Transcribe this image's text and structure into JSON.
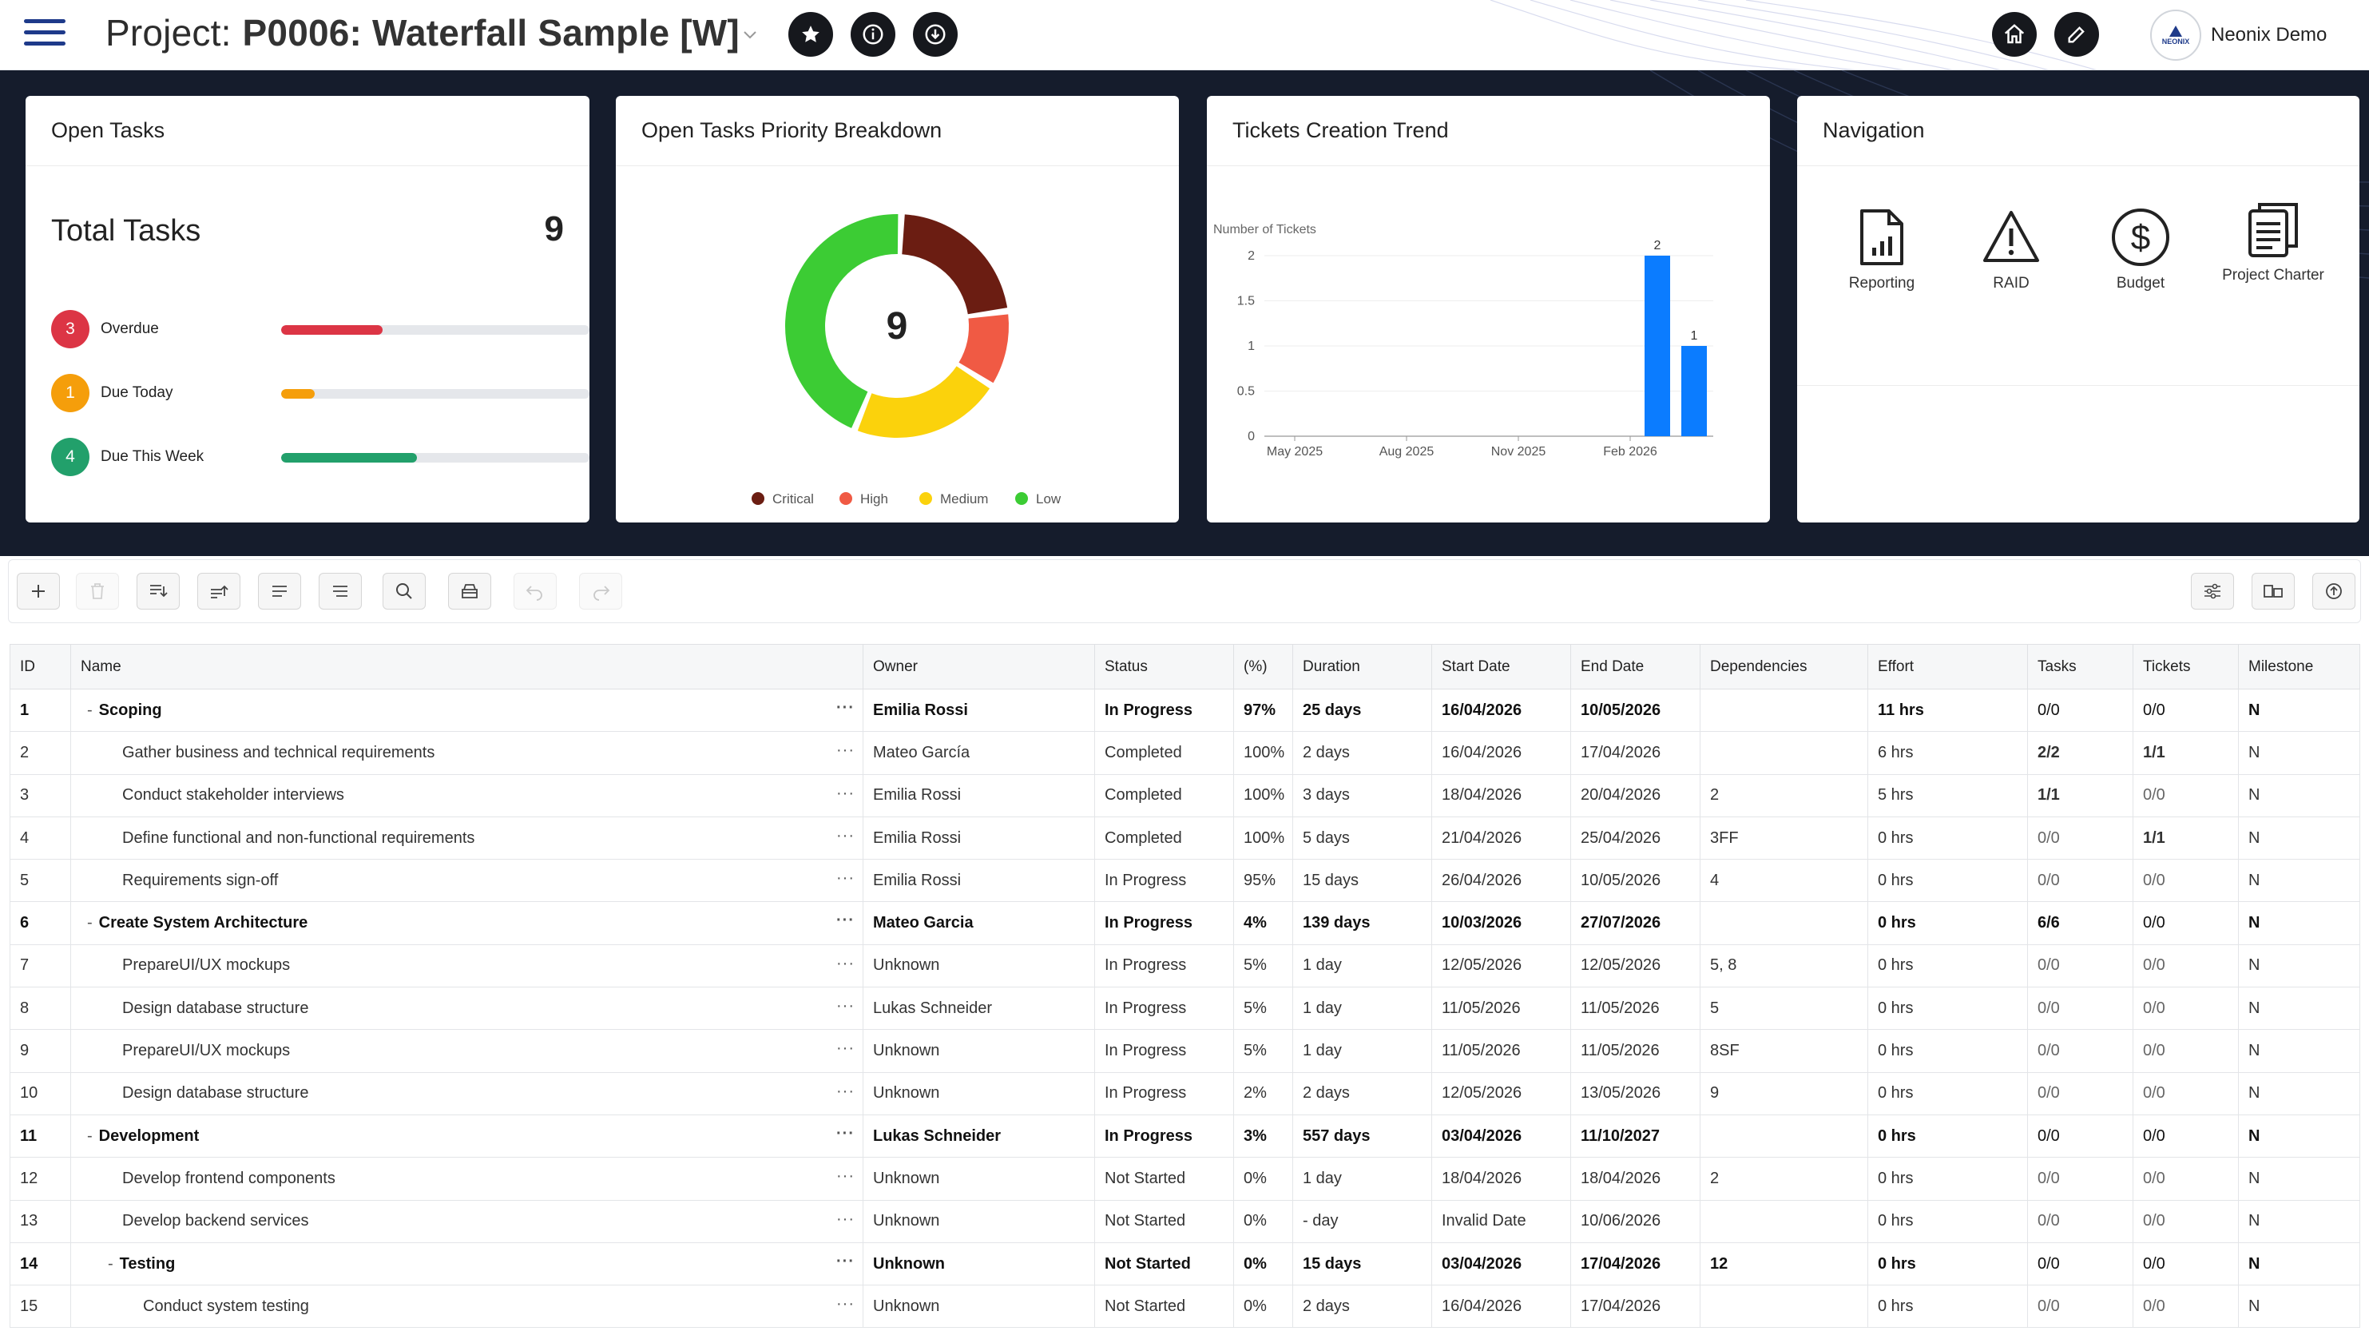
{
  "header": {
    "project_label": "Project:",
    "project_name": "P0006: Waterfall Sample [W]",
    "user_name": "Neonix Demo",
    "avatar_text": "NEONIX"
  },
  "cards": {
    "open_tasks": {
      "title": "Open Tasks",
      "total_label": "Total Tasks",
      "total": "9",
      "rows": [
        {
          "count": "3",
          "label": "Overdue",
          "color": "#dc3545",
          "fill": 0.33
        },
        {
          "count": "1",
          "label": "Due Today",
          "color": "#f59e0b",
          "fill": 0.11
        },
        {
          "count": "4",
          "label": "Due This Week",
          "color": "#22a06b",
          "fill": 0.44
        }
      ]
    },
    "priority": {
      "title": "Open Tasks Priority Breakdown",
      "center": "9",
      "legend": [
        "Critical",
        "High",
        "Medium",
        "Low"
      ]
    },
    "trend": {
      "title": "Tickets Creation Trend"
    },
    "navigation": {
      "title": "Navigation",
      "items": [
        "Reporting",
        "RAID",
        "Budget",
        "Project Charter"
      ]
    }
  },
  "chart_data": [
    {
      "type": "pie",
      "title": "Open Tasks Priority Breakdown",
      "categories": [
        "Critical",
        "High",
        "Medium",
        "Low"
      ],
      "values": [
        2,
        1,
        2,
        4
      ],
      "colors": [
        "#6b1d12",
        "#f05a44",
        "#fbd20c",
        "#3ccc34"
      ]
    },
    {
      "type": "bar",
      "title": "Tickets Creation Trend",
      "ylabel": "Number of Tickets",
      "ylim": [
        0,
        2
      ],
      "yticks": [
        "0",
        "0.5",
        "1",
        "1.5",
        "2"
      ],
      "xticks": [
        "May 2025",
        "Aug 2025",
        "Nov 2025",
        "Feb 2026"
      ],
      "categories": [
        "Mar 2026",
        "Apr 2026"
      ],
      "values": [
        2,
        1
      ],
      "color": "#0b7cff"
    }
  ],
  "table": {
    "headers": [
      "ID",
      "Name",
      "Owner",
      "Status",
      "(%)",
      "Duration",
      "Start Date",
      "End Date",
      "Dependencies",
      "Effort",
      "Tasks",
      "Tickets",
      "Milestone"
    ],
    "rows": [
      {
        "id": "1",
        "name": "Scoping",
        "owner": "Emilia Rossi",
        "status": "In Progress",
        "pct": "97%",
        "dur": "25 days",
        "start": "16/04/2026",
        "end": "10/05/2026",
        "deps": "",
        "effort": "11 hrs",
        "tasks": "0/0",
        "tickets": "0/0",
        "ms": "N",
        "bold": true,
        "level": 0
      },
      {
        "id": "2",
        "name": "Gather business and technical requirements",
        "owner": "Mateo García",
        "status": "Completed",
        "pct": "100%",
        "dur": "2 days",
        "start": "16/04/2026",
        "end": "17/04/2026",
        "deps": "",
        "effort": "6 hrs",
        "tasks": "2/2",
        "tickets": "1/1",
        "ms": "N",
        "bold": false,
        "level": 1
      },
      {
        "id": "3",
        "name": "Conduct stakeholder interviews",
        "owner": "Emilia Rossi",
        "status": "Completed",
        "pct": "100%",
        "dur": "3 days",
        "start": "18/04/2026",
        "end": "20/04/2026",
        "deps": "2",
        "effort": "5 hrs",
        "tasks": "1/1",
        "tickets": "0/0",
        "ms": "N",
        "bold": false,
        "level": 1
      },
      {
        "id": "4",
        "name": "Define functional and non-functional requirements",
        "owner": "Emilia Rossi",
        "status": "Completed",
        "pct": "100%",
        "dur": "5 days",
        "start": "21/04/2026",
        "end": "25/04/2026",
        "deps": "3FF",
        "effort": "0 hrs",
        "tasks": "0/0",
        "tickets": "1/1",
        "ms": "N",
        "bold": false,
        "level": 1
      },
      {
        "id": "5",
        "name": "Requirements sign-off",
        "owner": "Emilia Rossi",
        "status": "In Progress",
        "pct": "95%",
        "dur": "15 days",
        "start": "26/04/2026",
        "end": "10/05/2026",
        "deps": "4",
        "effort": "0 hrs",
        "tasks": "0/0",
        "tickets": "0/0",
        "ms": "N",
        "bold": false,
        "level": 1
      },
      {
        "id": "6",
        "name": "Create System Architecture",
        "owner": "Mateo Garcia",
        "status": "In Progress",
        "pct": "4%",
        "dur": "139 days",
        "start": "10/03/2026",
        "end": "27/07/2026",
        "deps": "",
        "effort": "0 hrs",
        "tasks": "6/6",
        "tickets": "0/0",
        "ms": "N",
        "bold": true,
        "level": 0
      },
      {
        "id": "7",
        "name": "PrepareUI/UX mockups",
        "owner": "Unknown",
        "status": "In Progress",
        "pct": "5%",
        "dur": "1 day",
        "start": "12/05/2026",
        "end": "12/05/2026",
        "deps": "5, 8",
        "effort": "0 hrs",
        "tasks": "0/0",
        "tickets": "0/0",
        "ms": "N",
        "bold": false,
        "level": 1
      },
      {
        "id": "8",
        "name": "Design database structure",
        "owner": "Lukas Schneider",
        "status": "In Progress",
        "pct": "5%",
        "dur": "1 day",
        "start": "11/05/2026",
        "end": "11/05/2026",
        "deps": "5",
        "effort": "0 hrs",
        "tasks": "0/0",
        "tickets": "0/0",
        "ms": "N",
        "bold": false,
        "level": 1
      },
      {
        "id": "9",
        "name": "PrepareUI/UX mockups",
        "owner": "Unknown",
        "status": "In Progress",
        "pct": "5%",
        "dur": "1 day",
        "start": "11/05/2026",
        "end": "11/05/2026",
        "deps": "8SF",
        "effort": "0 hrs",
        "tasks": "0/0",
        "tickets": "0/0",
        "ms": "N",
        "bold": false,
        "level": 1
      },
      {
        "id": "10",
        "name": "Design database structure",
        "owner": "Unknown",
        "status": "In Progress",
        "pct": "2%",
        "dur": "2 days",
        "start": "12/05/2026",
        "end": "13/05/2026",
        "deps": "9",
        "effort": "0 hrs",
        "tasks": "0/0",
        "tickets": "0/0",
        "ms": "N",
        "bold": false,
        "level": 1
      },
      {
        "id": "11",
        "name": "Development",
        "owner": "Lukas Schneider",
        "status": "In Progress",
        "pct": "3%",
        "dur": "557 days",
        "start": "03/04/2026",
        "end": "11/10/2027",
        "deps": "",
        "effort": "0 hrs",
        "tasks": "0/0",
        "tickets": "0/0",
        "ms": "N",
        "bold": true,
        "level": 0
      },
      {
        "id": "12",
        "name": "Develop frontend components",
        "owner": "Unknown",
        "status": "Not Started",
        "pct": "0%",
        "dur": "1 day",
        "start": "18/04/2026",
        "end": "18/04/2026",
        "deps": "2",
        "effort": "0 hrs",
        "tasks": "0/0",
        "tickets": "0/0",
        "ms": "N",
        "bold": false,
        "level": 1
      },
      {
        "id": "13",
        "name": "Develop backend services",
        "owner": "Unknown",
        "status": "Not Started",
        "pct": "0%",
        "dur": "- day",
        "start": "Invalid Date",
        "end": "10/06/2026",
        "deps": "",
        "effort": "0 hrs",
        "tasks": "0/0",
        "tickets": "0/0",
        "ms": "N",
        "bold": false,
        "level": 1
      },
      {
        "id": "14",
        "name": "Testing",
        "owner": "Unknown",
        "status": "Not Started",
        "pct": "0%",
        "dur": "15 days",
        "start": "03/04/2026",
        "end": "17/04/2026",
        "deps": "12",
        "effort": "0 hrs",
        "tasks": "0/0",
        "tickets": "0/0",
        "ms": "N",
        "bold": true,
        "level": 1
      },
      {
        "id": "15",
        "name": "Conduct system testing",
        "owner": "Unknown",
        "status": "Not Started",
        "pct": "0%",
        "dur": "2 days",
        "start": "16/04/2026",
        "end": "17/04/2026",
        "deps": "",
        "effort": "0 hrs",
        "tasks": "0/0",
        "tickets": "0/0",
        "ms": "N",
        "bold": false,
        "level": 2
      }
    ]
  }
}
